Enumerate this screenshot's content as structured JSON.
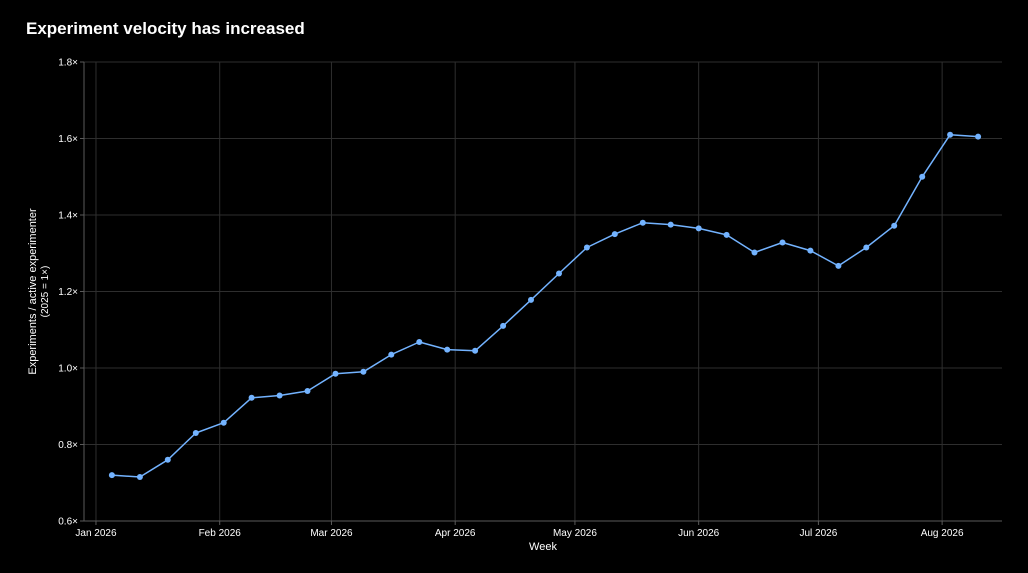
{
  "chart_data": {
    "type": "line",
    "title": "Experiment velocity has increased",
    "xlabel": "Week",
    "ylabel": [
      "Experiments / active experimenter",
      "(2025 = 1×)"
    ],
    "x_tick_labels": [
      "Jan 2026",
      "Feb 2026",
      "Mar 2026",
      "Apr 2026",
      "May 2026",
      "Jun 2026",
      "Jul 2026",
      "Aug 2026"
    ],
    "x_tick_dates": [
      "2026-01-01",
      "2026-02-01",
      "2026-03-01",
      "2026-04-01",
      "2026-05-01",
      "2026-06-01",
      "2026-07-01",
      "2026-08-01"
    ],
    "x_range": [
      "2025-12-29",
      "2026-08-16"
    ],
    "y_ticks": [
      0.6,
      0.8,
      1.0,
      1.2,
      1.4,
      1.6,
      1.8
    ],
    "y_tick_labels": [
      "0.6×",
      "0.8×",
      "1.0×",
      "1.2×",
      "1.4×",
      "1.6×",
      "1.8×"
    ],
    "ylim": [
      0.6,
      1.8
    ],
    "grid": true,
    "series": [
      {
        "color": "#73b3ff",
        "x": [
          "2026-01-05",
          "2026-01-12",
          "2026-01-19",
          "2026-01-26",
          "2026-02-02",
          "2026-02-09",
          "2026-02-16",
          "2026-02-23",
          "2026-03-02",
          "2026-03-09",
          "2026-03-16",
          "2026-03-23",
          "2026-03-30",
          "2026-04-06",
          "2026-04-13",
          "2026-04-20",
          "2026-04-27",
          "2026-05-04",
          "2026-05-11",
          "2026-05-18",
          "2026-05-25",
          "2026-06-01",
          "2026-06-08",
          "2026-06-15",
          "2026-06-22",
          "2026-06-29",
          "2026-07-06",
          "2026-07-13",
          "2026-07-20",
          "2026-07-27",
          "2026-08-03",
          "2026-08-10"
        ],
        "values": [
          0.72,
          0.715,
          0.76,
          0.83,
          0.857,
          0.922,
          0.928,
          0.94,
          0.985,
          0.99,
          1.035,
          1.068,
          1.048,
          1.045,
          1.11,
          1.178,
          1.247,
          1.315,
          1.35,
          1.38,
          1.375,
          1.365,
          1.348,
          1.302,
          1.328,
          1.307,
          1.267,
          1.315,
          1.372,
          1.5,
          1.61,
          1.605
        ]
      }
    ]
  },
  "colors": {
    "background": "#000000",
    "grid": "#2e2e2e",
    "axis": "#5a5a5a",
    "text": "#ffffff",
    "line": "#73b3ff"
  }
}
